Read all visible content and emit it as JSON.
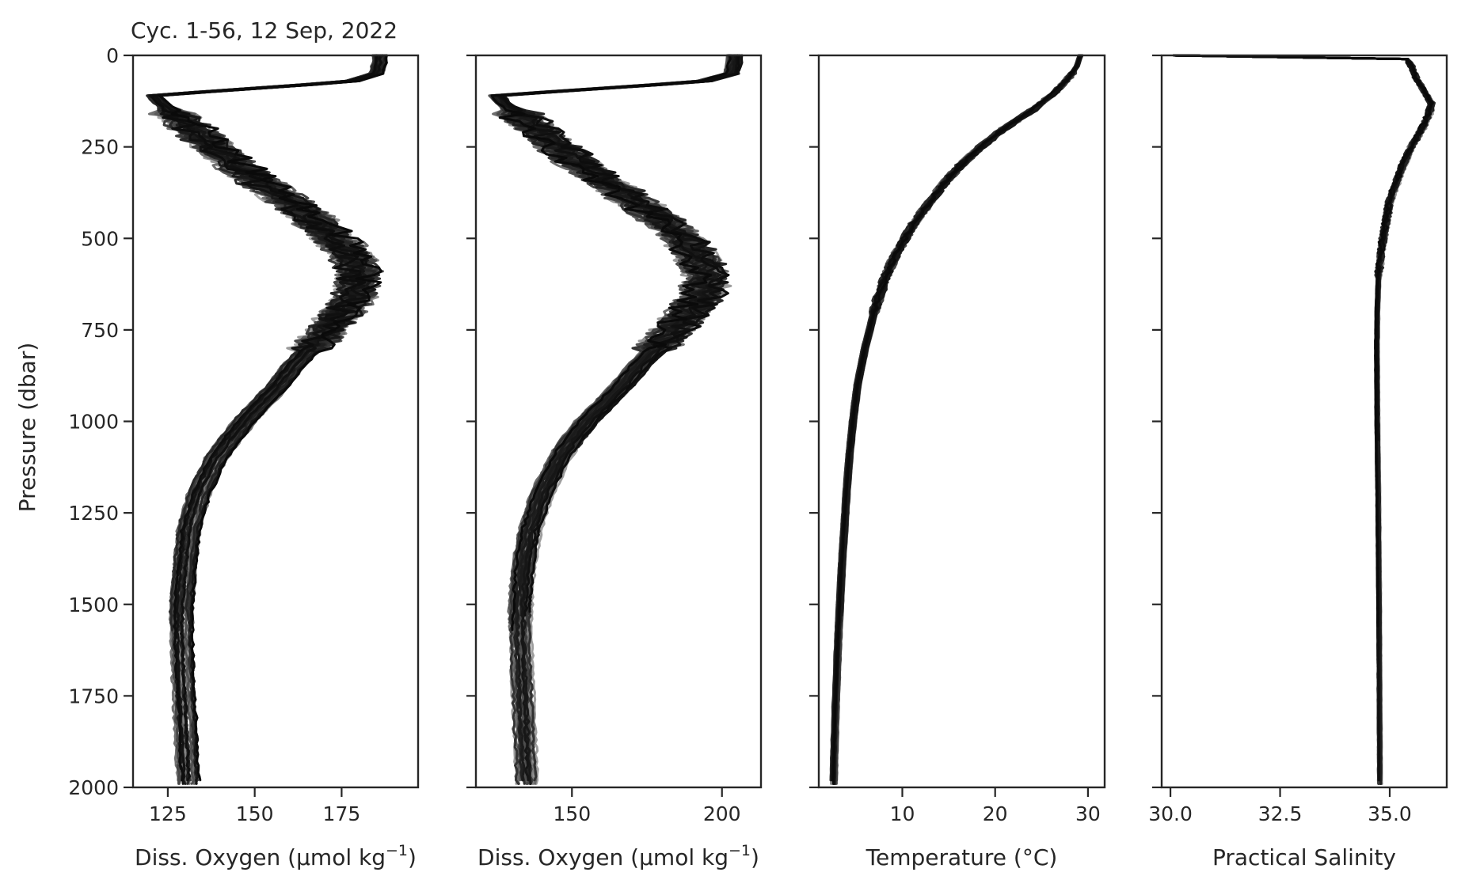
{
  "chart_data": {
    "type": "line",
    "title": "Cyc. 1-56, 12 Sep, 2022",
    "ylabel": "Pressure (dbar)",
    "ylim": [
      2000,
      0
    ],
    "y_ticks": [
      0,
      250,
      500,
      750,
      1000,
      1250,
      1500,
      1750,
      2000
    ],
    "y_tick_labels": [
      "0",
      "250",
      "500",
      "750",
      "1000",
      "1250",
      "1500",
      "1750",
      "2000"
    ],
    "series_shading": "grey-to-black by cycle number (cycles 1-56)",
    "grid": false,
    "legend": "none",
    "panels": [
      {
        "xlabel": "Diss. Oxygen (µmol kg",
        "xlabel_sup": "−1",
        "xlabel_end": ")",
        "xlim": [
          115,
          197
        ],
        "x_ticks": [
          125,
          150,
          175
        ],
        "x_tick_labels": [
          "125",
          "150",
          "175"
        ],
        "profile": {
          "p": [
            0,
            20,
            50,
            70,
            80,
            100,
            110,
            130,
            160,
            200,
            250,
            300,
            350,
            400,
            450,
            500,
            550,
            600,
            650,
            700,
            750,
            800,
            850,
            900,
            950,
            1000,
            1050,
            1100,
            1200,
            1300,
            1400,
            1500,
            1600,
            1700,
            1800,
            1900,
            2000
          ],
          "v": [
            186,
            186,
            185,
            178,
            165,
            135,
            121,
            123,
            127,
            132,
            138,
            145,
            152,
            160,
            167,
            173,
            178,
            180,
            179,
            175,
            171,
            166,
            161,
            157,
            152,
            147,
            143,
            139,
            134,
            131,
            130,
            129,
            129,
            129.5,
            130,
            130.5,
            131
          ]
        },
        "spread": 3.2,
        "noise": 2.0,
        "noise_band": [
          160,
          800
        ]
      },
      {
        "xlabel": "Diss. Oxygen (µmol kg",
        "xlabel_sup": "−1",
        "xlabel_end": ")",
        "xlim": [
          118,
          213
        ],
        "x_ticks": [
          150,
          200
        ],
        "x_tick_labels": [
          "150",
          "200"
        ],
        "profile": {
          "p": [
            0,
            20,
            50,
            70,
            80,
            100,
            110,
            130,
            160,
            200,
            250,
            300,
            350,
            400,
            450,
            500,
            550,
            600,
            650,
            700,
            750,
            800,
            850,
            900,
            950,
            1000,
            1050,
            1100,
            1200,
            1300,
            1400,
            1500,
            1600,
            1700,
            1800,
            1900,
            2000
          ],
          "v": [
            204,
            204,
            203,
            194,
            178,
            142,
            125,
            127,
            132,
            138,
            145,
            153,
            162,
            171,
            180,
            187,
            192,
            195,
            194,
            189,
            184,
            178,
            172,
            167,
            161,
            155,
            150,
            146,
            140,
            136,
            134,
            133,
            133,
            133.5,
            134,
            134.5,
            135
          ]
        },
        "spread": 3.8,
        "noise": 2.3,
        "noise_band": [
          160,
          800
        ]
      },
      {
        "xlabel": "Temperature (°C)",
        "xlabel_sup": "",
        "xlabel_end": "",
        "xlim": [
          1,
          31.8
        ],
        "x_ticks": [
          10,
          20,
          30
        ],
        "x_tick_labels": [
          "10",
          "20",
          "30"
        ],
        "profile": {
          "p": [
            0,
            30,
            60,
            100,
            150,
            200,
            250,
            300,
            350,
            400,
            450,
            500,
            550,
            600,
            650,
            700,
            800,
            900,
            1000,
            1100,
            1200,
            1400,
            1600,
            1800,
            2000
          ],
          "v": [
            29.2,
            28.8,
            28,
            26.5,
            24,
            21,
            18.5,
            16.3,
            14.5,
            13,
            11.5,
            10.3,
            9.2,
            8.3,
            7.6,
            7,
            6,
            5.2,
            4.7,
            4.3,
            4,
            3.5,
            3.1,
            2.8,
            2.6
          ]
        },
        "spread": 0.35,
        "noise": 0.12,
        "noise_band": [
          50,
          700
        ]
      },
      {
        "xlabel": "Practical Salinity",
        "xlabel_sup": "",
        "xlabel_end": "",
        "xlim": [
          29.8,
          36.3
        ],
        "x_ticks": [
          30.0,
          32.5,
          35.0
        ],
        "x_tick_labels": [
          "30.0",
          "32.5",
          "35.0"
        ],
        "profile": {
          "p": [
            0,
            4,
            10,
            30,
            60,
            100,
            130,
            160,
            200,
            250,
            300,
            350,
            400,
            500,
            600,
            700,
            800,
            1000,
            1200,
            1500,
            2000
          ],
          "v": [
            30.1,
            35.3,
            35.4,
            35.5,
            35.6,
            35.8,
            35.95,
            35.9,
            35.75,
            35.5,
            35.3,
            35.15,
            35.0,
            34.85,
            34.75,
            34.72,
            34.71,
            34.72,
            34.74,
            34.76,
            34.78
          ]
        },
        "spread": 0.04,
        "noise": 0.025,
        "noise_band": [
          20,
          600
        ]
      }
    ]
  }
}
